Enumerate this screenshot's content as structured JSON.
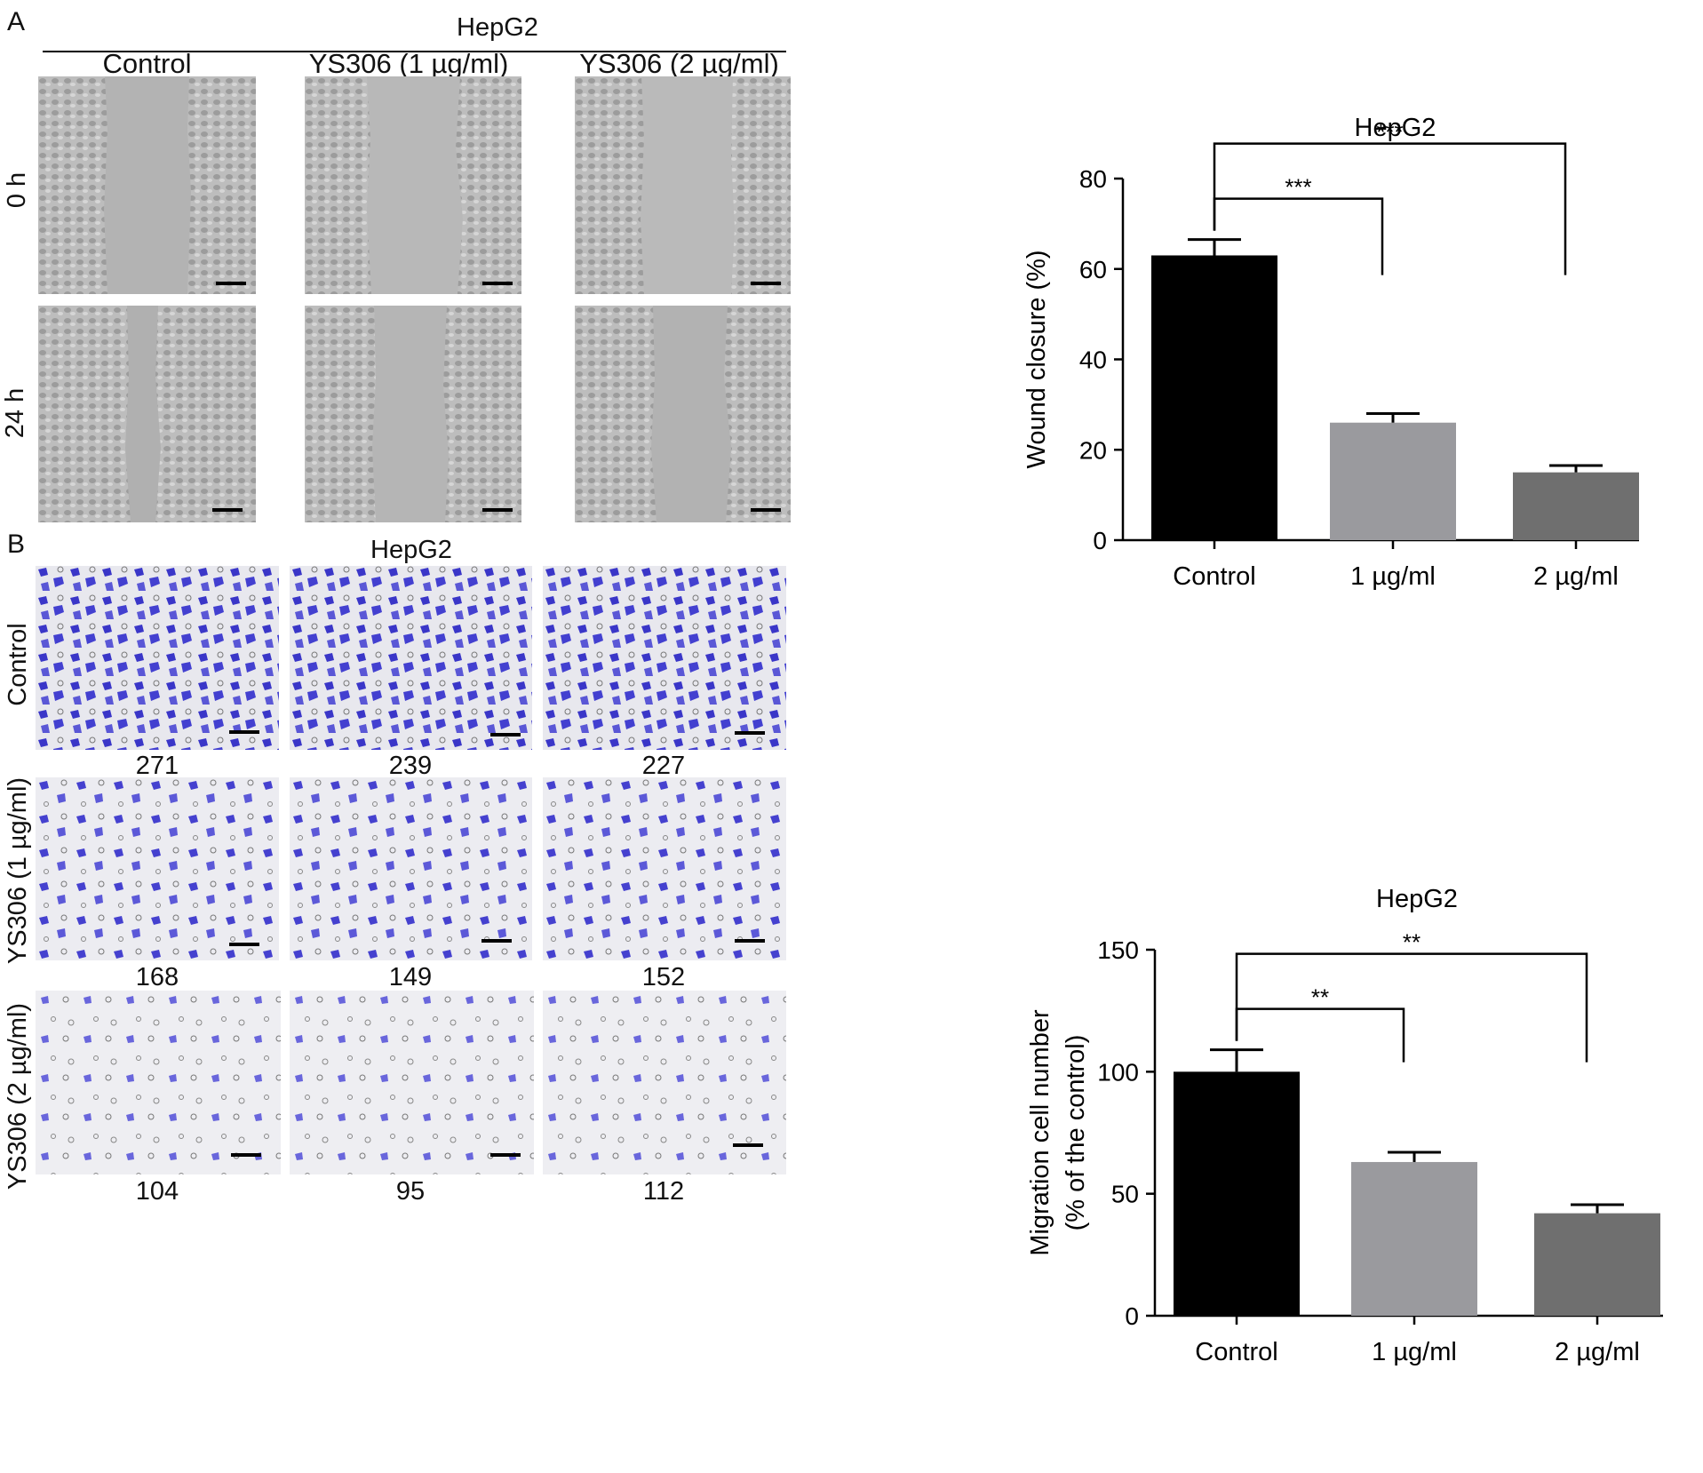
{
  "panelA": {
    "letter": "A",
    "header": "HepG2",
    "columns": [
      "Control",
      "YS306 (1 µg/ml)",
      "YS306 (2 µg/ml)"
    ],
    "rows": [
      "0 h",
      "24 h"
    ]
  },
  "panelB": {
    "letter": "B",
    "header": "HepG2",
    "rows": [
      "Control",
      "YS306 (1 µg/ml)",
      "YS306 (2 µg/ml)"
    ],
    "counts": [
      [
        "271",
        "239",
        "227"
      ],
      [
        "168",
        "149",
        "152"
      ],
      [
        "104",
        "95",
        "112"
      ]
    ]
  },
  "chart_data": [
    {
      "type": "bar",
      "title": "HepG2",
      "categories": [
        "Control",
        "1 µg/ml",
        "2 µg/ml"
      ],
      "values": [
        63,
        26,
        15
      ],
      "errors": [
        3.5,
        2,
        1.5
      ],
      "colors": [
        "#000000",
        "#9a9a9e",
        "#6f6f6f"
      ],
      "ylabel": "Wound closure (%)",
      "ylim": [
        0,
        80
      ],
      "yticks": [
        "0",
        "20",
        "40",
        "60",
        "80"
      ],
      "significance": [
        {
          "from": "Control",
          "to": "1 µg/ml",
          "label": "***"
        },
        {
          "from": "Control",
          "to": "2 µg/ml",
          "label": "***"
        }
      ]
    },
    {
      "type": "bar",
      "title": "HepG2",
      "categories": [
        "Control",
        "1 µg/ml",
        "2 µg/ml"
      ],
      "values": [
        100,
        63,
        42
      ],
      "errors": [
        9,
        4,
        3.5
      ],
      "colors": [
        "#000000",
        "#9a9a9e",
        "#6f6f6f"
      ],
      "ylabel_lines": [
        "Migration cell number",
        "(% of the control)"
      ],
      "ylim": [
        0,
        150
      ],
      "yticks": [
        "0",
        "50",
        "100",
        "150"
      ],
      "significance": [
        {
          "from": "Control",
          "to": "1 µg/ml",
          "label": "**"
        },
        {
          "from": "Control",
          "to": "2 µg/ml",
          "label": "**"
        }
      ]
    }
  ]
}
